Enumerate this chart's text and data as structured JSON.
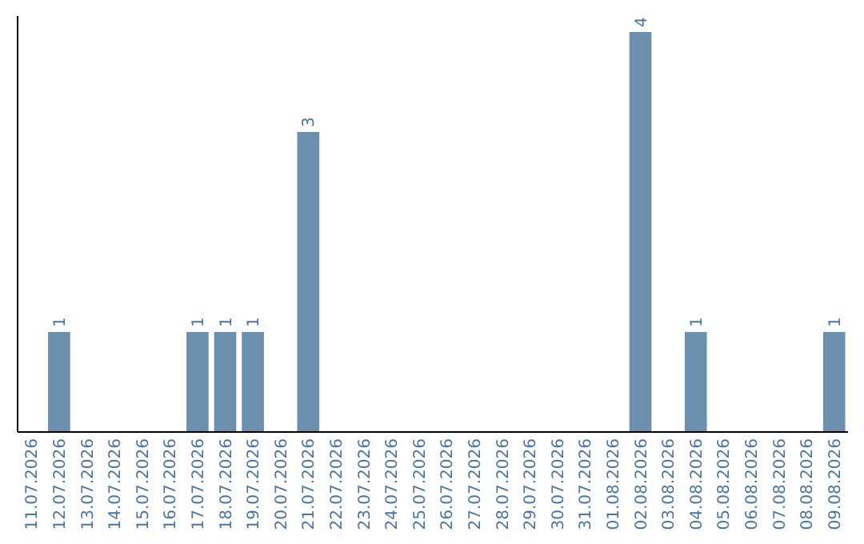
{
  "chart_data": {
    "type": "bar",
    "categories": [
      "11.07.2026",
      "12.07.2026",
      "13.07.2026",
      "14.07.2026",
      "15.07.2026",
      "16.07.2026",
      "17.07.2026",
      "18.07.2026",
      "19.07.2026",
      "20.07.2026",
      "21.07.2026",
      "22.07.2026",
      "23.07.2026",
      "24.07.2026",
      "25.07.2026",
      "26.07.2026",
      "27.07.2026",
      "28.07.2026",
      "29.07.2026",
      "30.07.2026",
      "31.07.2026",
      "01.08.2026",
      "02.08.2026",
      "03.08.2026",
      "04.08.2026",
      "05.08.2026",
      "06.08.2026",
      "07.08.2026",
      "08.08.2026",
      "09.08.2026"
    ],
    "values": [
      null,
      1,
      null,
      null,
      null,
      null,
      1,
      1,
      1,
      null,
      3,
      null,
      null,
      null,
      null,
      null,
      null,
      null,
      null,
      null,
      null,
      null,
      4,
      null,
      1,
      null,
      null,
      null,
      null,
      1
    ],
    "color": "#6d8fae",
    "data_labels": true
  }
}
